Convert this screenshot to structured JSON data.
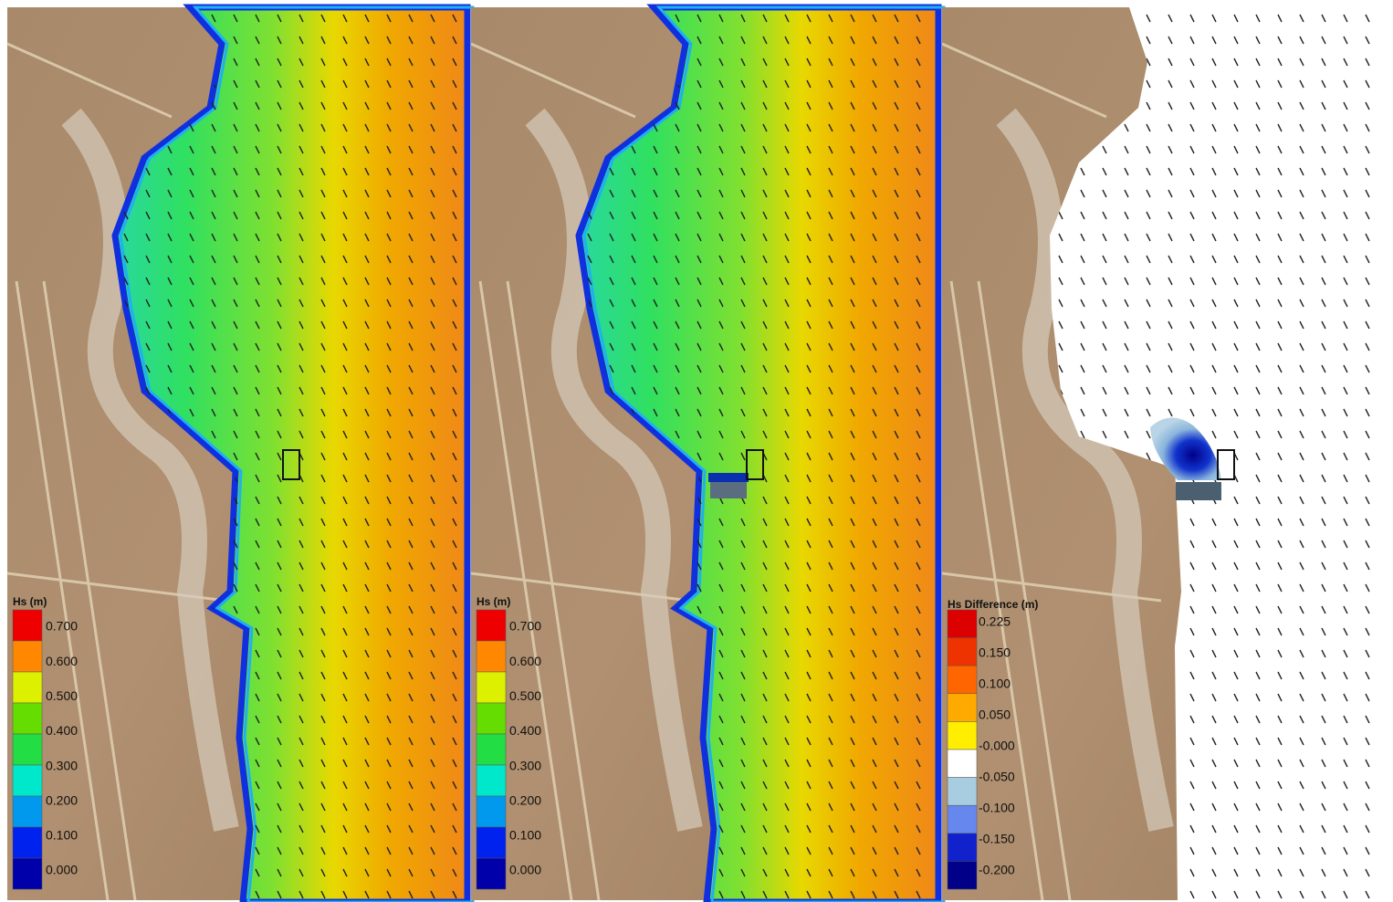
{
  "panels": [
    {
      "legend_title": "Hs (m)",
      "legend_labels": [
        "0.700",
        "0.600",
        "0.500",
        "0.400",
        "0.300",
        "0.200",
        "0.100",
        "0.000"
      ],
      "legend_colors": [
        "#ee0000",
        "#ff8800",
        "#ddf000",
        "#66dd00",
        "#22dd44",
        "#00e8cc",
        "#0099ee",
        "#0022ee",
        "#0000aa"
      ]
    },
    {
      "legend_title": "Hs (m)",
      "legend_labels": [
        "0.700",
        "0.600",
        "0.500",
        "0.400",
        "0.300",
        "0.200",
        "0.100",
        "0.000"
      ],
      "legend_colors": [
        "#ee0000",
        "#ff8800",
        "#ddf000",
        "#66dd00",
        "#22dd44",
        "#00e8cc",
        "#0099ee",
        "#0022ee",
        "#0000aa"
      ]
    },
    {
      "legend_title": "Hs Difference (m)",
      "legend_labels": [
        "0.225",
        "0.150",
        "0.100",
        "0.050",
        "-0.000",
        "-0.050",
        "-0.100",
        "-0.150",
        "-0.200"
      ],
      "legend_colors": [
        "#dd0000",
        "#ee3300",
        "#ff6600",
        "#ffaa00",
        "#ffee00",
        "#ffffff",
        "#a8cce0",
        "#6688ee",
        "#1122cc",
        "#000088"
      ]
    }
  ]
}
